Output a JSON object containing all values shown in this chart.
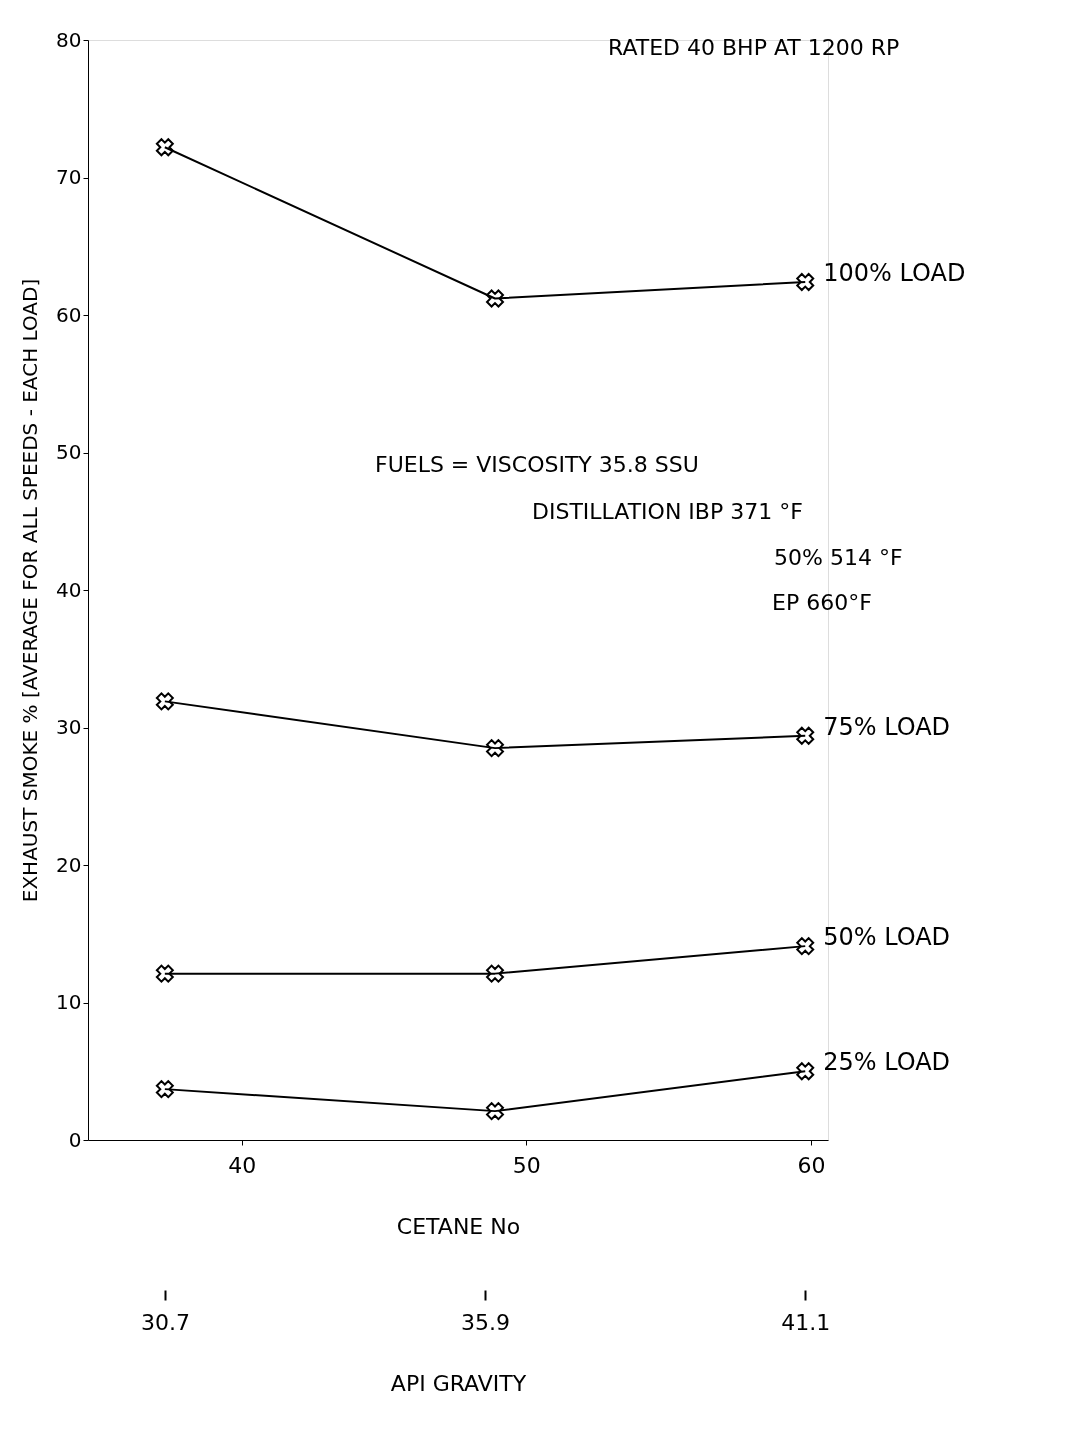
{
  "chart_data": {
    "type": "line",
    "xlabel": "CETANE No",
    "ylabel": "EXHAUST SMOKE % [AVERAGE FOR ALL SPEEDS - EACH LOAD]",
    "x2label": "API GRAVITY",
    "x": [
      37.3,
      48.9,
      59.8
    ],
    "series": [
      {
        "name": "100% LOAD",
        "color": "#000000",
        "values": [
          72.2,
          61.2,
          62.4
        ]
      },
      {
        "name": "75% LOAD",
        "color": "#000000",
        "values": [
          31.9,
          28.5,
          29.4
        ]
      },
      {
        "name": "50% LOAD",
        "color": "#000000",
        "values": [
          12.1,
          12.1,
          14.1
        ]
      },
      {
        "name": "25% LOAD",
        "color": "#000000",
        "values": [
          3.7,
          2.1,
          5.0
        ]
      }
    ],
    "xlim": [
      34.6,
      60.6
    ],
    "xticks": [
      40,
      50,
      60
    ],
    "ylim": [
      0,
      80
    ],
    "yticks": [
      0,
      10,
      20,
      30,
      40,
      50,
      60,
      70,
      80
    ],
    "x2lim": [
      29.45,
      41.47
    ],
    "x2ticks": [
      30.7,
      35.9,
      41.1
    ],
    "annotations": [
      "RATED 40 BHP AT 1200 RP",
      "FUELS = VISCOSITY 35.8 SSU",
      "DISTILLATION IBP 371 °F",
      "50% 514 °F",
      "EP 660°F"
    ],
    "marker": "cross",
    "line_style": "solid",
    "grid": false,
    "legend": false
  }
}
